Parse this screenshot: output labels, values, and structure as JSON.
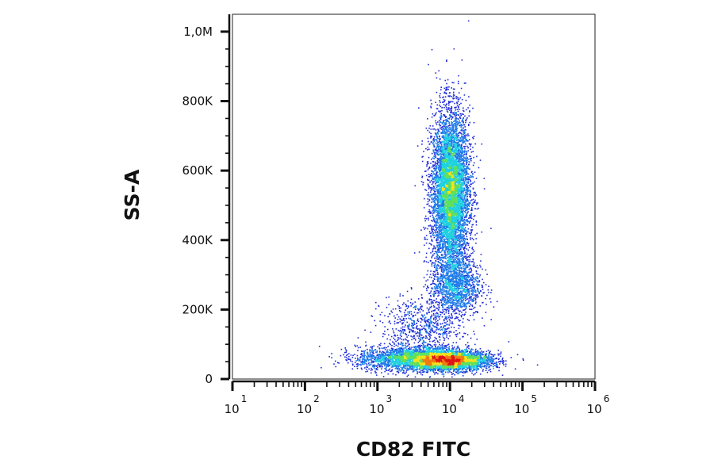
{
  "chart_data": {
    "type": "scatter",
    "subtype": "flow-cytometry density dot plot",
    "xlabel": "CD82 FITC",
    "ylabel": "SS-A",
    "x_scale": "log",
    "xlim": [
      10,
      1000000
    ],
    "ylim": [
      0,
      1050000
    ],
    "x_tick_labels": [
      {
        "base": "10",
        "exp": "1",
        "value": 10
      },
      {
        "base": "10",
        "exp": "2",
        "value": 100
      },
      {
        "base": "10",
        "exp": "3",
        "value": 1000
      },
      {
        "base": "10",
        "exp": "4",
        "value": 10000
      },
      {
        "base": "10",
        "exp": "5",
        "value": 100000
      },
      {
        "base": "10",
        "exp": "6",
        "value": 1000000
      }
    ],
    "y_tick_labels": [
      {
        "label": "0",
        "value": 0
      },
      {
        "label": "200K",
        "value": 200000
      },
      {
        "label": "400K",
        "value": 400000
      },
      {
        "label": "600K",
        "value": 600000
      },
      {
        "label": "800K",
        "value": 800000
      },
      {
        "label": "1,0M",
        "value": 1000000
      }
    ],
    "colormap": [
      "#1f2bd6",
      "#1e7be8",
      "#1fd0e0",
      "#5ee05e",
      "#f2e21c",
      "#f07a12",
      "#e01414"
    ],
    "populations": [
      {
        "center_x": 10000,
        "center_y": 540000,
        "spread_log_x": 0.13,
        "spread_y": 115000,
        "events": 6500
      },
      {
        "center_x": 12000,
        "center_y": 270000,
        "spread_log_x": 0.17,
        "spread_y": 45000,
        "events": 1300
      },
      {
        "center_x": 10000,
        "center_y": 55000,
        "spread_log_x": 0.28,
        "spread_y": 14000,
        "events": 3200
      },
      {
        "center_x": 3000,
        "center_y": 60000,
        "spread_log_x": 0.38,
        "spread_y": 17000,
        "events": 2400
      },
      {
        "center_x": 4000,
        "center_y": 150000,
        "spread_log_x": 0.28,
        "spread_y": 45000,
        "events": 700
      }
    ]
  }
}
